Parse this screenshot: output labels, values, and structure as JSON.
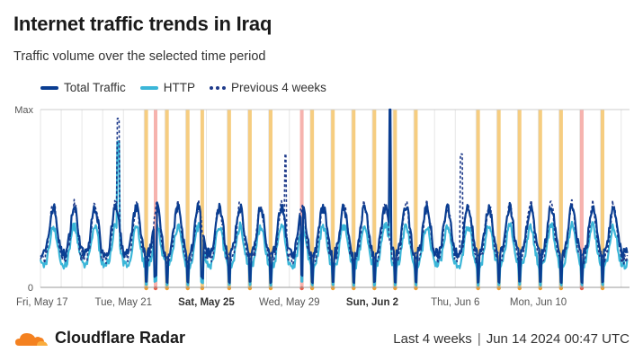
{
  "header": {
    "title": "Internet traffic trends in Iraq",
    "subtitle": "Traffic volume over the selected time period"
  },
  "footer": {
    "brand": "Cloudflare Radar",
    "range": "Last 4 weeks",
    "timestamp": "Jun 14 2024 00:47 UTC"
  },
  "colors": {
    "total": "#0a3d91",
    "http": "#3bb6d8",
    "previous": "#1e3a8a",
    "outage_orange": "#f5c46a",
    "outage_red": "#f4a6a0",
    "grid": "#e6e6e6"
  },
  "chart_data": {
    "type": "line",
    "y_axis": {
      "top_label": "Max",
      "bottom_label": "0",
      "ylim": [
        0,
        1
      ]
    },
    "x_ticks": [
      {
        "day": 0,
        "label": "Fri, May 17",
        "bold": false
      },
      {
        "day": 4,
        "label": "Tue, May 21",
        "bold": false
      },
      {
        "day": 8,
        "label": "Sat, May 25",
        "bold": true
      },
      {
        "day": 12,
        "label": "Wed, May 29",
        "bold": false
      },
      {
        "day": 16,
        "label": "Sun, Jun 2",
        "bold": true
      },
      {
        "day": 20,
        "label": "Thu, Jun 6",
        "bold": false
      },
      {
        "day": 24,
        "label": "Mon, Jun 10",
        "bold": false
      }
    ],
    "x_range_days": [
      0,
      28.4
    ],
    "series": [
      {
        "name": "Total Traffic",
        "style": "solid"
      },
      {
        "name": "HTTP",
        "style": "solid"
      },
      {
        "name": "Previous 4 weeks",
        "style": "dashed"
      }
    ],
    "outage_days": [
      5.1,
      5.55,
      6.1,
      7.1,
      7.8,
      9.1,
      10.1,
      11.1,
      12.6,
      13.1,
      14.1,
      15.1,
      16.1,
      17.1,
      18.1,
      21.1,
      22.1,
      23.1,
      24.1,
      25.1,
      26.1,
      27.1
    ],
    "red_outage_days": [
      5.55,
      12.6,
      26.1
    ],
    "spike_day": 16.85
  }
}
